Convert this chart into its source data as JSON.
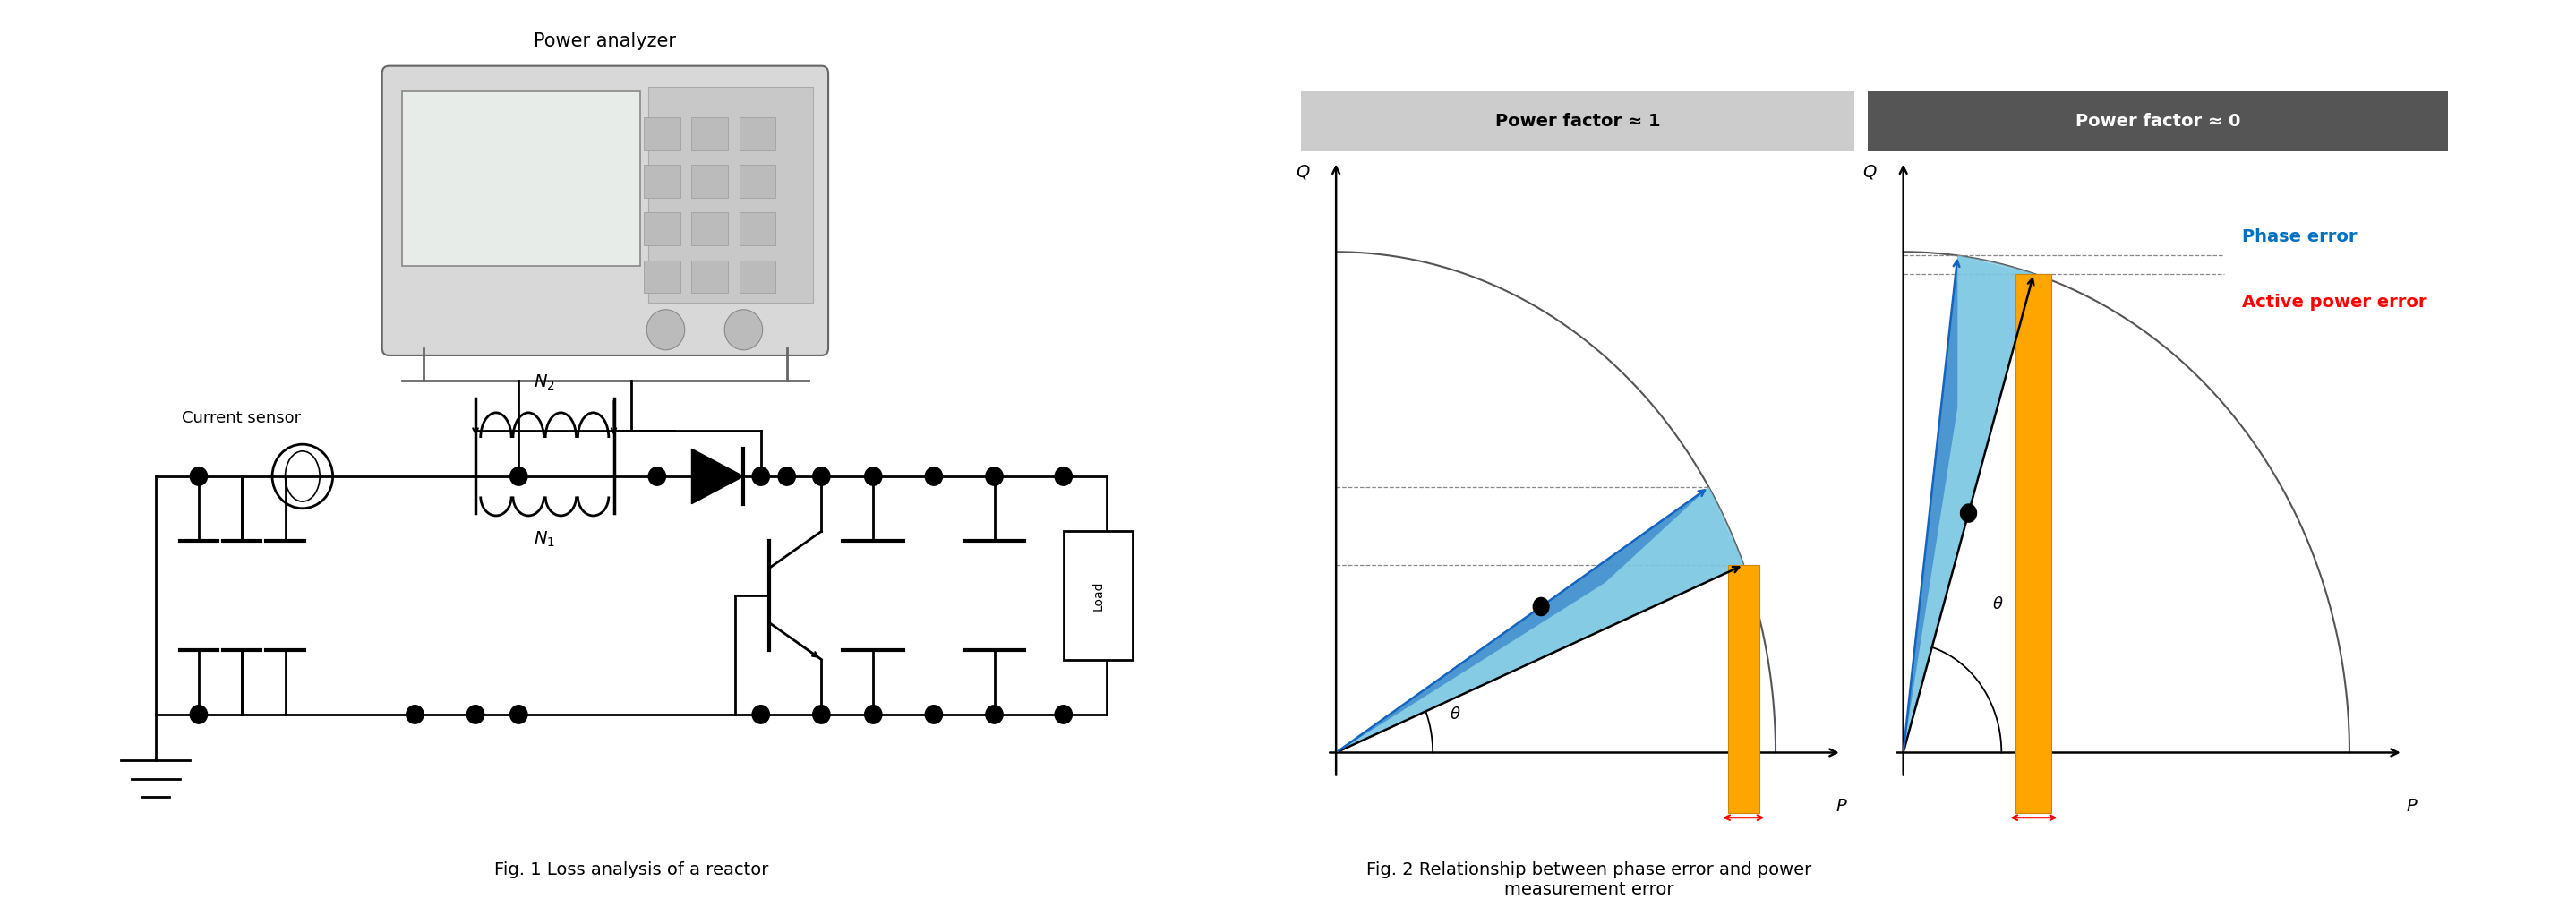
{
  "fig_width": 28.77,
  "fig_height": 10.23,
  "bg_color": "#ffffff",
  "fig1_caption": "Fig. 1 Loss analysis of a reactor",
  "fig2_caption": "Fig. 2 Relationship between phase error and power\nmeasurement error",
  "pf1_label": "Power factor ≈ 1",
  "pf0_label": "Power factor ≈ 0",
  "phase_error_label": "Phase error",
  "active_power_error_label": "Active power error",
  "phase_error_color": "#0070C0",
  "active_power_error_color": "#FF0000",
  "orange_color": "#FFA500",
  "blue_fill_light": "#7EC8E3",
  "blue_fill_dark": "#1565C0",
  "arc_color": "#404040",
  "axis_color": "#000000",
  "theta_label": "θ",
  "power_analyzer_label": "Power analyzer",
  "current_sensor_label": "Current sensor",
  "N2_label": "N_2",
  "N1_label": "N_1",
  "load_label": "Load",
  "pf1_header_color": "#cccccc",
  "pf0_header_color": "#555555",
  "pf0_text_color": "#ffffff",
  "pf1_text_color": "#000000"
}
